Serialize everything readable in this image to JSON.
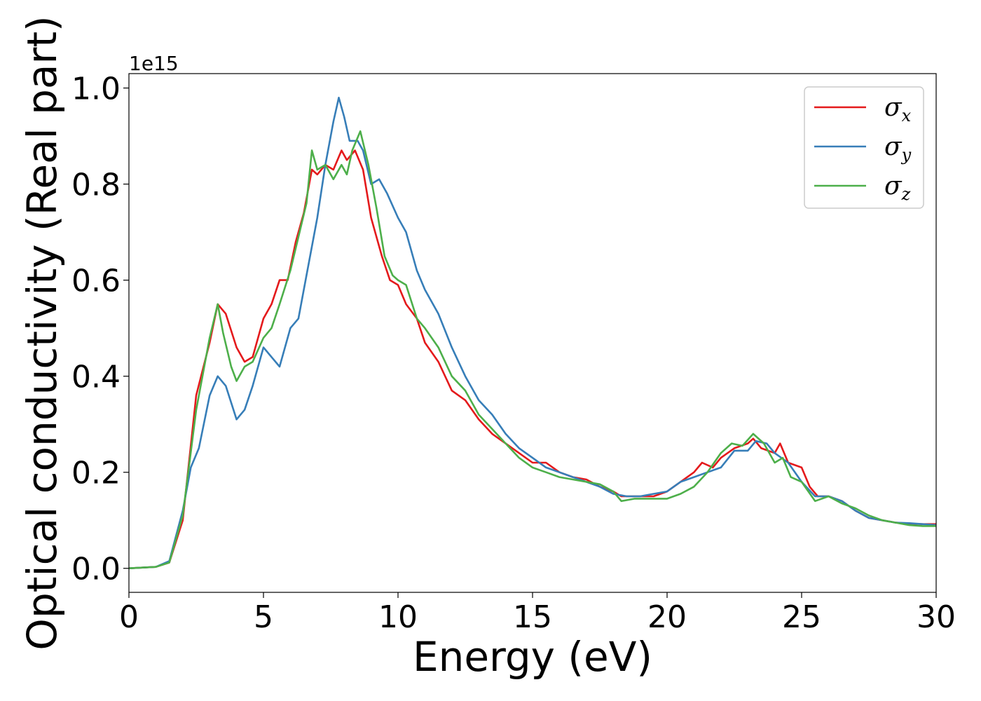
{
  "chart_data": {
    "type": "line",
    "title": "",
    "xlabel": "Energy (eV)",
    "ylabel": "Optical conductivity (Real part)",
    "y_offset_text": "1e15",
    "xlim": [
      0,
      30
    ],
    "ylim": [
      -0.05,
      1.03
    ],
    "x_ticks": [
      0,
      5,
      10,
      15,
      20,
      25,
      30
    ],
    "x_tick_labels": [
      "0",
      "5",
      "10",
      "15",
      "20",
      "25",
      "30"
    ],
    "y_ticks": [
      0.0,
      0.2,
      0.4,
      0.6,
      0.8,
      1.0
    ],
    "y_tick_labels": [
      "0.0",
      "0.2",
      "0.4",
      "0.6",
      "0.8",
      "1.0"
    ],
    "grid": false,
    "legend_position": "top-right",
    "series": [
      {
        "name": "σx",
        "label_main": "σ",
        "label_sub": "x",
        "color": "#e41a1c",
        "points": [
          [
            0,
            0
          ],
          [
            1,
            0.003
          ],
          [
            1.5,
            0.012
          ],
          [
            2,
            0.1
          ],
          [
            2.5,
            0.36
          ],
          [
            3,
            0.47
          ],
          [
            3.3,
            0.55
          ],
          [
            3.6,
            0.53
          ],
          [
            4,
            0.46
          ],
          [
            4.3,
            0.43
          ],
          [
            4.6,
            0.44
          ],
          [
            5,
            0.52
          ],
          [
            5.3,
            0.55
          ],
          [
            5.6,
            0.6
          ],
          [
            5.9,
            0.6
          ],
          [
            6.2,
            0.68
          ],
          [
            6.5,
            0.74
          ],
          [
            6.8,
            0.83
          ],
          [
            7,
            0.82
          ],
          [
            7.3,
            0.84
          ],
          [
            7.6,
            0.83
          ],
          [
            7.9,
            0.87
          ],
          [
            8.1,
            0.85
          ],
          [
            8.4,
            0.87
          ],
          [
            8.7,
            0.83
          ],
          [
            9,
            0.73
          ],
          [
            9.4,
            0.65
          ],
          [
            9.7,
            0.6
          ],
          [
            10,
            0.59
          ],
          [
            10.3,
            0.55
          ],
          [
            10.7,
            0.52
          ],
          [
            11,
            0.47
          ],
          [
            11.5,
            0.43
          ],
          [
            12,
            0.37
          ],
          [
            12.5,
            0.35
          ],
          [
            13,
            0.31
          ],
          [
            13.5,
            0.28
          ],
          [
            14,
            0.26
          ],
          [
            14.5,
            0.24
          ],
          [
            15,
            0.22
          ],
          [
            15.5,
            0.22
          ],
          [
            16,
            0.2
          ],
          [
            16.5,
            0.19
          ],
          [
            17,
            0.185
          ],
          [
            17.5,
            0.17
          ],
          [
            18,
            0.16
          ],
          [
            18.3,
            0.15
          ],
          [
            18.8,
            0.15
          ],
          [
            19.5,
            0.15
          ],
          [
            20,
            0.16
          ],
          [
            20.5,
            0.18
          ],
          [
            21,
            0.2
          ],
          [
            21.3,
            0.22
          ],
          [
            21.7,
            0.21
          ],
          [
            22,
            0.23
          ],
          [
            22.5,
            0.25
          ],
          [
            23,
            0.26
          ],
          [
            23.2,
            0.27
          ],
          [
            23.5,
            0.25
          ],
          [
            24,
            0.24
          ],
          [
            24.2,
            0.26
          ],
          [
            24.5,
            0.22
          ],
          [
            25,
            0.21
          ],
          [
            25.3,
            0.17
          ],
          [
            25.6,
            0.15
          ],
          [
            26,
            0.15
          ],
          [
            26.5,
            0.14
          ],
          [
            27,
            0.12
          ],
          [
            27.5,
            0.105
          ],
          [
            28,
            0.1
          ],
          [
            28.5,
            0.095
          ],
          [
            29,
            0.093
          ],
          [
            29.5,
            0.092
          ],
          [
            30,
            0.092
          ]
        ]
      },
      {
        "name": "σy",
        "label_main": "σ",
        "label_sub": "y",
        "color": "#377eb8",
        "points": [
          [
            0,
            0
          ],
          [
            1,
            0.003
          ],
          [
            1.5,
            0.015
          ],
          [
            2,
            0.12
          ],
          [
            2.3,
            0.21
          ],
          [
            2.6,
            0.25
          ],
          [
            3,
            0.36
          ],
          [
            3.3,
            0.4
          ],
          [
            3.6,
            0.38
          ],
          [
            4,
            0.31
          ],
          [
            4.3,
            0.33
          ],
          [
            4.6,
            0.38
          ],
          [
            5,
            0.46
          ],
          [
            5.3,
            0.44
          ],
          [
            5.6,
            0.42
          ],
          [
            6,
            0.5
          ],
          [
            6.3,
            0.52
          ],
          [
            6.6,
            0.61
          ],
          [
            7,
            0.73
          ],
          [
            7.3,
            0.84
          ],
          [
            7.6,
            0.93
          ],
          [
            7.8,
            0.98
          ],
          [
            8,
            0.94
          ],
          [
            8.2,
            0.89
          ],
          [
            8.5,
            0.89
          ],
          [
            8.7,
            0.87
          ],
          [
            9,
            0.8
          ],
          [
            9.3,
            0.81
          ],
          [
            9.6,
            0.78
          ],
          [
            10,
            0.73
          ],
          [
            10.3,
            0.7
          ],
          [
            10.7,
            0.62
          ],
          [
            11,
            0.58
          ],
          [
            11.5,
            0.53
          ],
          [
            12,
            0.46
          ],
          [
            12.5,
            0.4
          ],
          [
            13,
            0.35
          ],
          [
            13.5,
            0.32
          ],
          [
            14,
            0.28
          ],
          [
            14.5,
            0.25
          ],
          [
            15,
            0.23
          ],
          [
            15.5,
            0.21
          ],
          [
            16,
            0.2
          ],
          [
            16.5,
            0.19
          ],
          [
            17,
            0.18
          ],
          [
            17.5,
            0.17
          ],
          [
            18,
            0.155
          ],
          [
            18.5,
            0.15
          ],
          [
            19,
            0.15
          ],
          [
            19.5,
            0.155
          ],
          [
            20,
            0.16
          ],
          [
            20.5,
            0.18
          ],
          [
            21,
            0.19
          ],
          [
            21.5,
            0.2
          ],
          [
            22,
            0.21
          ],
          [
            22.5,
            0.245
          ],
          [
            23,
            0.245
          ],
          [
            23.3,
            0.265
          ],
          [
            23.7,
            0.26
          ],
          [
            24,
            0.24
          ],
          [
            24.5,
            0.22
          ],
          [
            25,
            0.18
          ],
          [
            25.5,
            0.15
          ],
          [
            26,
            0.15
          ],
          [
            26.5,
            0.14
          ],
          [
            27,
            0.12
          ],
          [
            27.5,
            0.105
          ],
          [
            28,
            0.1
          ],
          [
            28.5,
            0.095
          ],
          [
            29,
            0.094
          ],
          [
            29.5,
            0.092
          ],
          [
            30,
            0.09
          ]
        ]
      },
      {
        "name": "σz",
        "label_main": "σ",
        "label_sub": "z",
        "color": "#4daf4a",
        "points": [
          [
            0,
            0
          ],
          [
            1,
            0.003
          ],
          [
            1.5,
            0.012
          ],
          [
            2,
            0.11
          ],
          [
            2.5,
            0.33
          ],
          [
            3,
            0.48
          ],
          [
            3.3,
            0.55
          ],
          [
            3.5,
            0.49
          ],
          [
            3.8,
            0.42
          ],
          [
            4,
            0.39
          ],
          [
            4.3,
            0.42
          ],
          [
            4.6,
            0.43
          ],
          [
            5,
            0.48
          ],
          [
            5.3,
            0.5
          ],
          [
            5.6,
            0.55
          ],
          [
            6,
            0.62
          ],
          [
            6.3,
            0.69
          ],
          [
            6.6,
            0.76
          ],
          [
            6.8,
            0.87
          ],
          [
            7,
            0.83
          ],
          [
            7.3,
            0.84
          ],
          [
            7.6,
            0.81
          ],
          [
            7.9,
            0.84
          ],
          [
            8.1,
            0.82
          ],
          [
            8.3,
            0.87
          ],
          [
            8.6,
            0.91
          ],
          [
            8.9,
            0.84
          ],
          [
            9.2,
            0.75
          ],
          [
            9.5,
            0.65
          ],
          [
            9.8,
            0.61
          ],
          [
            10,
            0.6
          ],
          [
            10.3,
            0.59
          ],
          [
            10.7,
            0.52
          ],
          [
            11,
            0.5
          ],
          [
            11.5,
            0.46
          ],
          [
            12,
            0.4
          ],
          [
            12.5,
            0.37
          ],
          [
            13,
            0.32
          ],
          [
            13.5,
            0.29
          ],
          [
            14,
            0.26
          ],
          [
            14.5,
            0.23
          ],
          [
            15,
            0.21
          ],
          [
            15.5,
            0.2
          ],
          [
            16,
            0.19
          ],
          [
            16.5,
            0.185
          ],
          [
            17,
            0.18
          ],
          [
            17.5,
            0.175
          ],
          [
            18,
            0.16
          ],
          [
            18.3,
            0.14
          ],
          [
            18.8,
            0.145
          ],
          [
            19.5,
            0.145
          ],
          [
            20,
            0.145
          ],
          [
            20.5,
            0.155
          ],
          [
            21,
            0.17
          ],
          [
            21.5,
            0.2
          ],
          [
            22,
            0.24
          ],
          [
            22.4,
            0.26
          ],
          [
            22.8,
            0.255
          ],
          [
            23.2,
            0.28
          ],
          [
            23.6,
            0.26
          ],
          [
            24,
            0.22
          ],
          [
            24.3,
            0.23
          ],
          [
            24.6,
            0.19
          ],
          [
            25,
            0.18
          ],
          [
            25.5,
            0.14
          ],
          [
            26,
            0.15
          ],
          [
            26.5,
            0.135
          ],
          [
            27,
            0.125
          ],
          [
            27.5,
            0.11
          ],
          [
            28,
            0.1
          ],
          [
            28.5,
            0.095
          ],
          [
            29,
            0.09
          ],
          [
            29.5,
            0.088
          ],
          [
            30,
            0.088
          ]
        ]
      }
    ]
  }
}
